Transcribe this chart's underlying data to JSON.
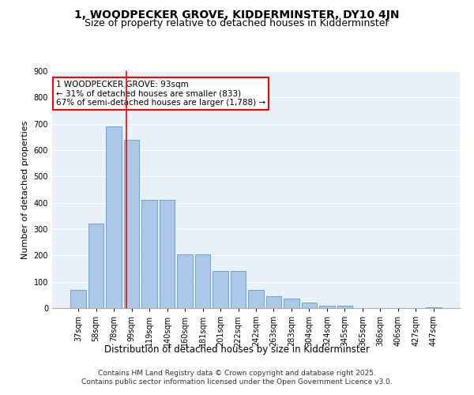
{
  "title1": "1, WOODPECKER GROVE, KIDDERMINSTER, DY10 4JN",
  "title2": "Size of property relative to detached houses in Kidderminster",
  "xlabel": "Distribution of detached houses by size in Kidderminster",
  "ylabel": "Number of detached properties",
  "categories": [
    "37sqm",
    "58sqm",
    "78sqm",
    "99sqm",
    "119sqm",
    "140sqm",
    "160sqm",
    "181sqm",
    "201sqm",
    "222sqm",
    "242sqm",
    "263sqm",
    "283sqm",
    "304sqm",
    "324sqm",
    "345sqm",
    "365sqm",
    "386sqm",
    "406sqm",
    "427sqm",
    "447sqm"
  ],
  "values": [
    70,
    320,
    690,
    640,
    410,
    410,
    205,
    205,
    140,
    140,
    70,
    45,
    35,
    20,
    10,
    8,
    0,
    0,
    0,
    0,
    2
  ],
  "bar_color": "#aec6e8",
  "bar_edge_color": "#5b9bd5",
  "bg_color": "#e8f0f8",
  "vline_color": "red",
  "annotation_text": "1 WOODPECKER GROVE: 93sqm\n← 31% of detached houses are smaller (833)\n67% of semi-detached houses are larger (1,788) →",
  "annotation_box_color": "white",
  "annotation_box_edge": "red",
  "footer": "Contains HM Land Registry data © Crown copyright and database right 2025.\nContains public sector information licensed under the Open Government Licence v3.0.",
  "ylim": [
    0,
    900
  ],
  "yticks": [
    0,
    100,
    200,
    300,
    400,
    500,
    600,
    700,
    800,
    900
  ],
  "title1_fontsize": 10,
  "title2_fontsize": 9,
  "xlabel_fontsize": 8.5,
  "ylabel_fontsize": 8,
  "tick_fontsize": 7,
  "footer_fontsize": 6.5,
  "annot_fontsize": 7.5
}
